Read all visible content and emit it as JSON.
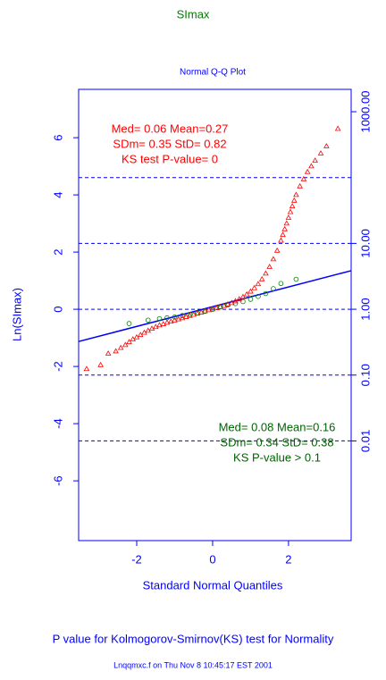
{
  "chart_data": {
    "type": "scatter",
    "title": "SImax",
    "title_color": "#008000",
    "subtitle": "Normal Q-Q  Plot",
    "axis_color": "#0000ff",
    "xlabel": "Standard Normal Quantiles",
    "ylabel": "Ln(SImax)",
    "xlim": [
      -3.53,
      3.65
    ],
    "ylim": [
      -8.09,
      7.69
    ],
    "xticks": [
      -2,
      0,
      2
    ],
    "yticks": [
      -6,
      -4,
      -2,
      0,
      2,
      4,
      6
    ],
    "y2log": true,
    "y2lim": [
      0.000306,
      2186
    ],
    "y2ticks": [
      {
        "value": 0.01,
        "label": "0.01"
      },
      {
        "value": 0.1,
        "label": "0.10"
      },
      {
        "value": 1,
        "label": "1.00"
      },
      {
        "value": 10,
        "label": "10.00"
      },
      {
        "value": 1000,
        "label": "1000.00"
      }
    ],
    "hlines": [
      0.01,
      0.1,
      1,
      10,
      100
    ],
    "series": [
      {
        "color": "#ff0000",
        "marker": "triangle",
        "x": [
          -3.32,
          -2.95,
          -2.75,
          -2.55,
          -2.42,
          -2.3,
          -2.2,
          -2.1,
          -2.0,
          -1.9,
          -1.8,
          -1.7,
          -1.6,
          -1.5,
          -1.4,
          -1.3,
          -1.2,
          -1.1,
          -1.0,
          -0.9,
          -0.8,
          -0.7,
          -0.6,
          -0.5,
          -0.4,
          -0.3,
          -0.2,
          -0.1,
          0,
          0.1,
          0.2,
          0.3,
          0.4,
          0.5,
          0.6,
          0.7,
          0.8,
          0.9,
          1.0,
          1.1,
          1.2,
          1.3,
          1.4,
          1.5,
          1.6,
          1.7,
          1.8,
          1.85,
          1.9,
          1.95,
          2.0,
          2.05,
          2.1,
          2.15,
          2.2,
          2.3,
          2.4,
          2.5,
          2.6,
          2.7,
          2.85,
          3.0,
          3.3
        ],
        "values": [
          -2.09,
          -1.95,
          -1.55,
          -1.47,
          -1.35,
          -1.25,
          -1.15,
          -1.05,
          -0.98,
          -0.9,
          -0.82,
          -0.75,
          -0.68,
          -0.62,
          -0.56,
          -0.52,
          -0.47,
          -0.43,
          -0.39,
          -0.35,
          -0.31,
          -0.27,
          -0.23,
          -0.19,
          -0.15,
          -0.11,
          -0.07,
          -0.03,
          0.0,
          0.04,
          0.08,
          0.12,
          0.17,
          0.22,
          0.28,
          0.35,
          0.43,
          0.52,
          0.62,
          0.74,
          0.88,
          1.05,
          1.25,
          1.48,
          1.75,
          2.05,
          2.4,
          2.6,
          2.8,
          3.0,
          3.2,
          3.4,
          3.6,
          3.8,
          4.0,
          4.3,
          4.55,
          4.8,
          5.0,
          5.2,
          5.45,
          5.7,
          6.31
        ]
      },
      {
        "color": "#008000",
        "marker": "circle",
        "x": [
          -2.2,
          -1.7,
          -1.4,
          -1.2,
          -1.0,
          -0.8,
          -0.6,
          -0.4,
          -0.2,
          0,
          0.2,
          0.4,
          0.6,
          0.8,
          1.0,
          1.2,
          1.4,
          1.6,
          1.8,
          2.2
        ],
        "values": [
          -0.5,
          -0.38,
          -0.33,
          -0.3,
          -0.27,
          -0.22,
          -0.18,
          -0.13,
          -0.07,
          0.0,
          0.08,
          0.15,
          0.2,
          0.27,
          0.35,
          0.45,
          0.55,
          0.72,
          0.9,
          1.05
        ]
      }
    ],
    "reference_line": {
      "color": "#0000ff",
      "intercept": 0.09,
      "slope": 0.345
    },
    "annotations": [
      {
        "color": "#ff0000",
        "lines": [
          "Med= 0.06   Mean=0.27",
          "SDm= 0.35   StD= 0.82",
          "KS test P-value=  0"
        ]
      },
      {
        "color": "#006400",
        "lines": [
          "Med= 0.08   Mean=0.16",
          "SDm= 0.34   StD= 0.38",
          "KS  P-value > 0.1"
        ]
      }
    ],
    "footnote": "P value for Kolmogorov-Smirnov(KS) test for Normality",
    "footnote_color": "#0000ff",
    "credit": "Lnqqmxc.f on  Thu Nov  8 10:45:17 EST 2001",
    "credit_color": "#0000ff"
  }
}
